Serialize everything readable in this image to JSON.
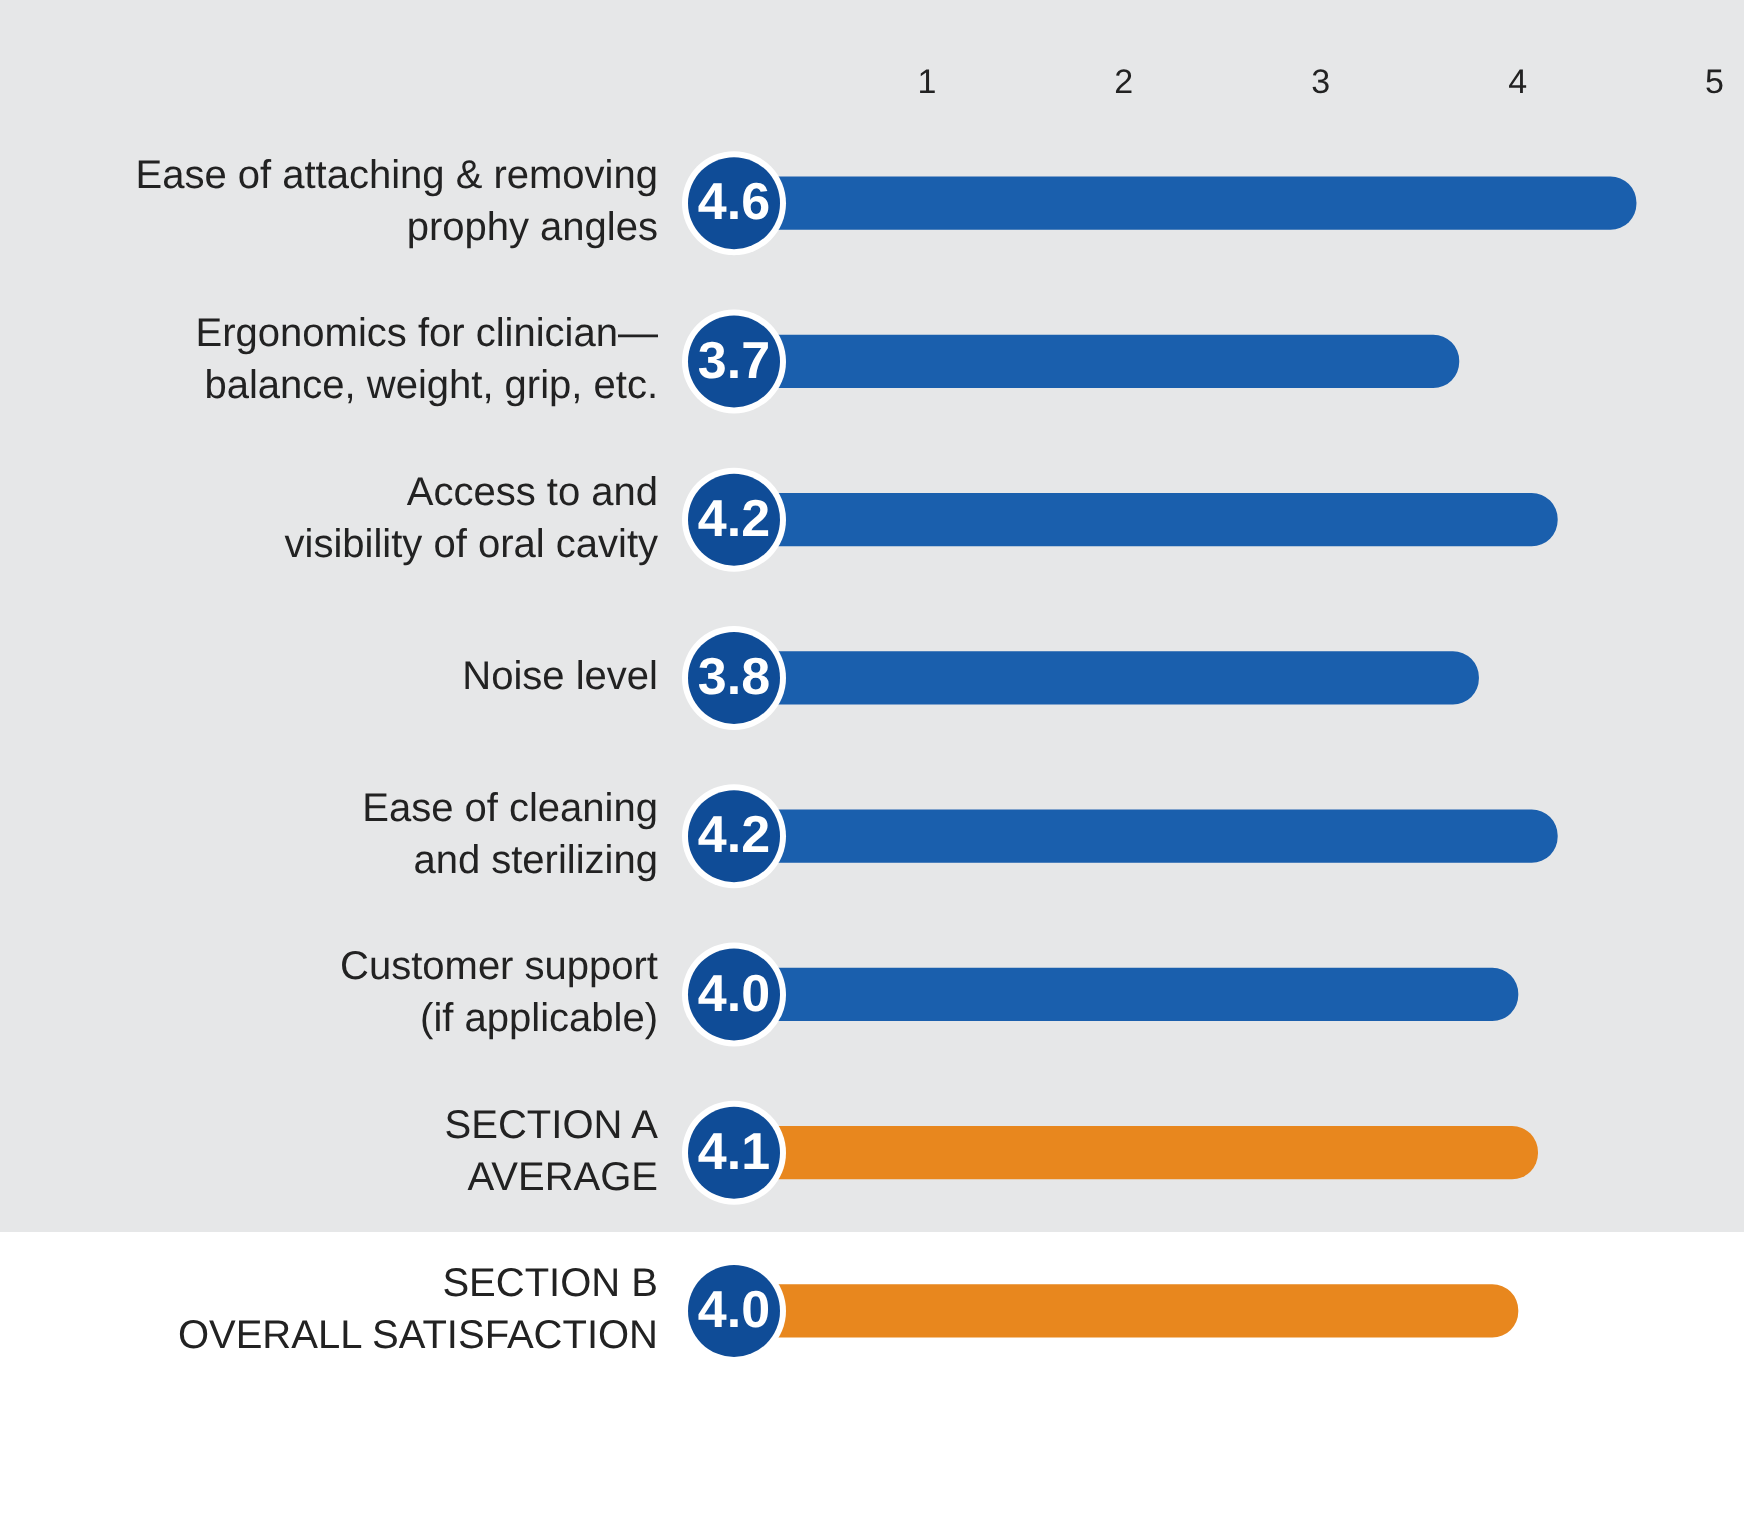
{
  "chart_data": {
    "type": "bar",
    "orientation": "horizontal",
    "categories": [
      "Ease of attaching & removing\nprophy angles",
      "Ergonomics for clinician—\nbalance, weight, grip, etc.",
      "Access to and\nvisibility of oral cavity",
      "Noise level",
      "Ease of cleaning\nand sterilizing",
      "Customer support\n(if applicable)",
      "SECTION A\nAVERAGE",
      "SECTION B\nOVERALL SATISFACTION"
    ],
    "values": [
      4.6,
      3.7,
      4.2,
      3.8,
      4.2,
      4.0,
      4.1,
      4.0
    ],
    "value_labels": [
      "4.6",
      "3.7",
      "4.2",
      "3.8",
      "4.2",
      "4.0",
      "4.1",
      "4.0"
    ],
    "colors": [
      "#1a5fad",
      "#1a5fad",
      "#1a5fad",
      "#1a5fad",
      "#1a5fad",
      "#1a5fad",
      "#e8871e",
      "#e8871e"
    ],
    "xlim": [
      0,
      5
    ],
    "xticks": [
      1,
      2,
      3,
      4,
      5
    ],
    "grid": false,
    "legend": false
  }
}
